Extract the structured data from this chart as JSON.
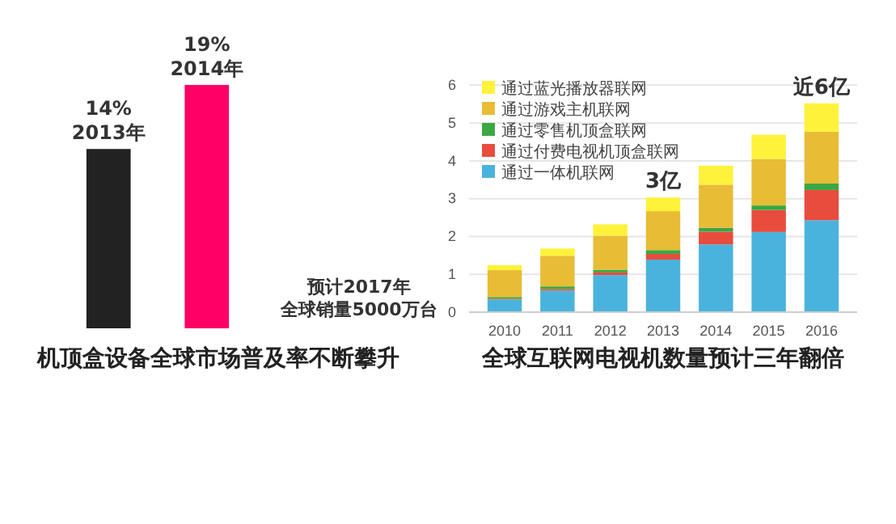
{
  "chart_data": [
    {
      "type": "bar",
      "title": "机顶盒设备全球市场普及率不断攀升",
      "categories": [
        "2013年",
        "2014年"
      ],
      "values": [
        14,
        19
      ],
      "colors": [
        "#222222",
        "#ff0066"
      ],
      "value_labels": [
        "14%",
        "19%"
      ],
      "tick_labels": false,
      "annotations": [
        "预计2017年",
        "全球销量5000万台"
      ]
    },
    {
      "type": "bar",
      "title": "全球互联网电视机数量预计三年翻倍",
      "stacked": true,
      "categories": [
        "2010",
        "2011",
        "2012",
        "2013",
        "2014",
        "2015",
        "2016"
      ],
      "series": [
        {
          "name": "通过一体机联网",
          "color": "#4ab3dd",
          "values": [
            0.33,
            0.57,
            0.98,
            1.39,
            1.79,
            2.12,
            2.43
          ]
        },
        {
          "name": "通过付费电视机顶盒联网",
          "color": "#e84c3d",
          "values": [
            0.02,
            0.04,
            0.07,
            0.15,
            0.34,
            0.58,
            0.8
          ]
        },
        {
          "name": "通过零售机顶盒联网",
          "color": "#3aa843",
          "values": [
            0.05,
            0.07,
            0.07,
            0.1,
            0.1,
            0.12,
            0.17
          ]
        },
        {
          "name": "通过游戏主机联网",
          "color": "#e8bc35",
          "values": [
            0.71,
            0.81,
            0.9,
            1.03,
            1.14,
            1.23,
            1.37
          ]
        },
        {
          "name": "通过蓝光播放器联网",
          "color": "#fff23a",
          "values": [
            0.13,
            0.19,
            0.3,
            0.36,
            0.5,
            0.64,
            0.75
          ]
        }
      ],
      "ylim": [
        0,
        6.2
      ],
      "yticks": [
        0,
        1,
        2,
        3,
        4,
        5,
        6
      ],
      "grid": "y",
      "legend": "top left",
      "annotations": [
        "3亿",
        "近6亿"
      ]
    }
  ]
}
